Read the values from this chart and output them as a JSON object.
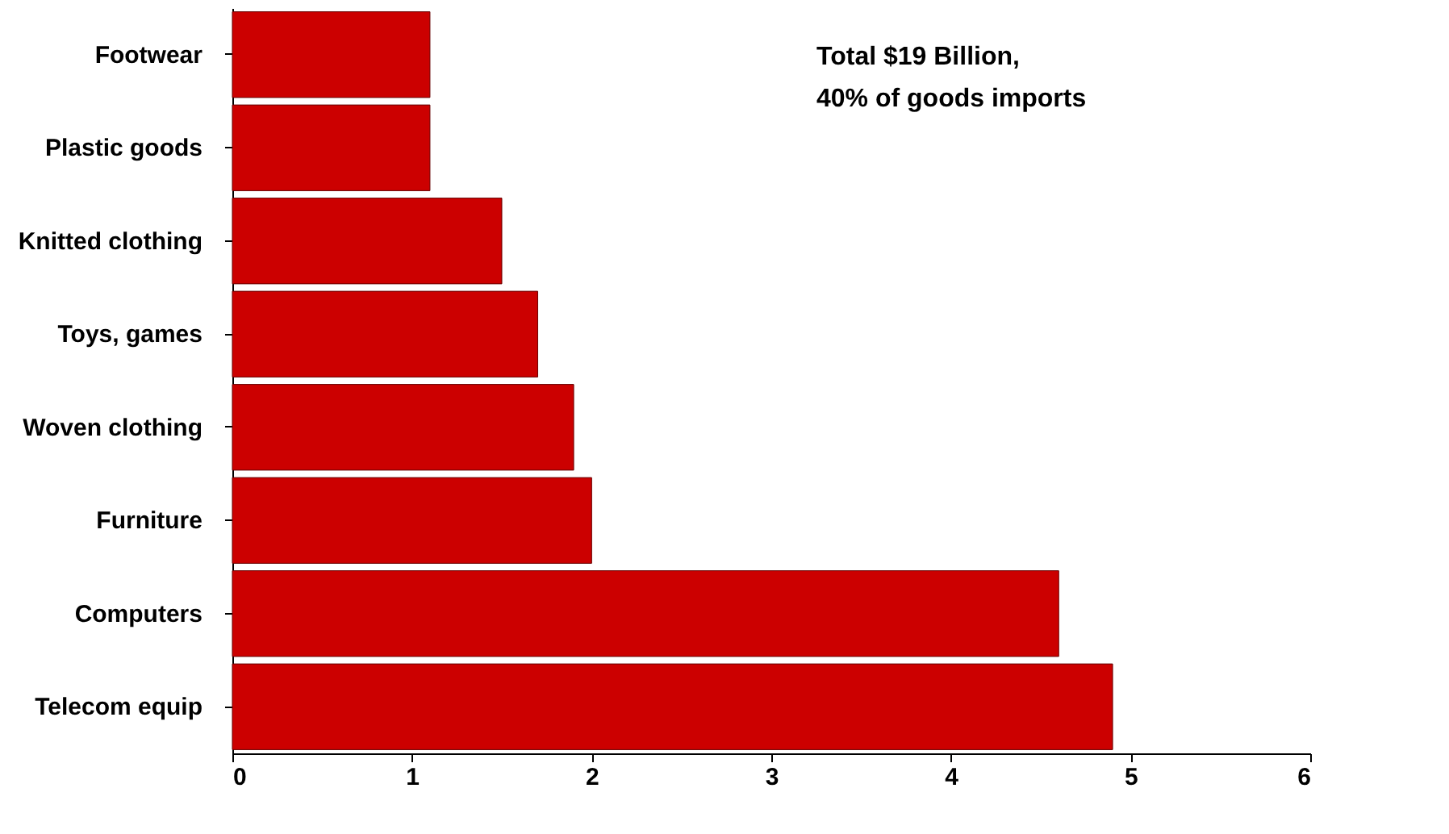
{
  "chart_data": {
    "type": "bar",
    "orientation": "horizontal",
    "categories": [
      "Footwear",
      "Plastic goods",
      "Knitted clothing",
      "Toys, games",
      "Woven clothing",
      "Furniture",
      "Computers",
      "Telecom equip"
    ],
    "values": [
      1.1,
      1.1,
      1.5,
      1.7,
      1.9,
      2.0,
      4.6,
      4.9
    ],
    "color": "#cc0000",
    "xlim": [
      0,
      6
    ],
    "xticks": [
      0,
      1,
      2,
      3,
      4,
      5,
      6
    ],
    "grid": false,
    "annotations": [
      "Total $19 Billion,\n40% of goods imports"
    ]
  }
}
